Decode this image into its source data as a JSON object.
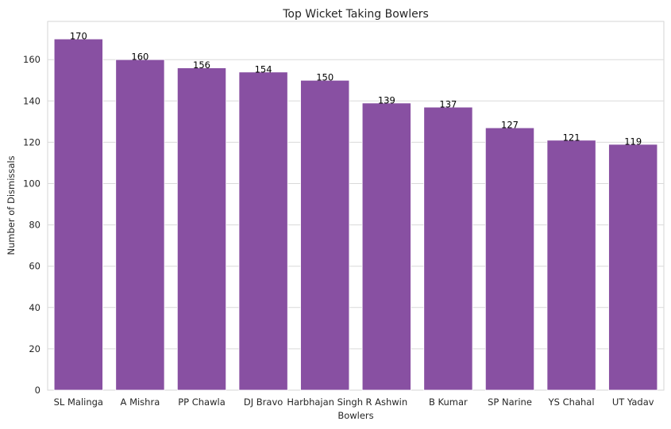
{
  "chart_data": {
    "type": "bar",
    "title": "Top Wicket Taking Bowlers",
    "xlabel": "Bowlers",
    "ylabel": "Number of Dismissals",
    "categories": [
      "SL Malinga",
      "A Mishra",
      "PP Chawla",
      "DJ Bravo",
      "Harbhajan Singh",
      "R Ashwin",
      "B Kumar",
      "SP Narine",
      "YS Chahal",
      "UT Yadav"
    ],
    "values": [
      170,
      160,
      156,
      154,
      150,
      139,
      137,
      127,
      121,
      119
    ],
    "ylim": [
      0,
      178.5
    ],
    "yticks": [
      0,
      20,
      40,
      60,
      80,
      100,
      120,
      140,
      160
    ],
    "grid": true,
    "bar_color": "#8850a2"
  }
}
